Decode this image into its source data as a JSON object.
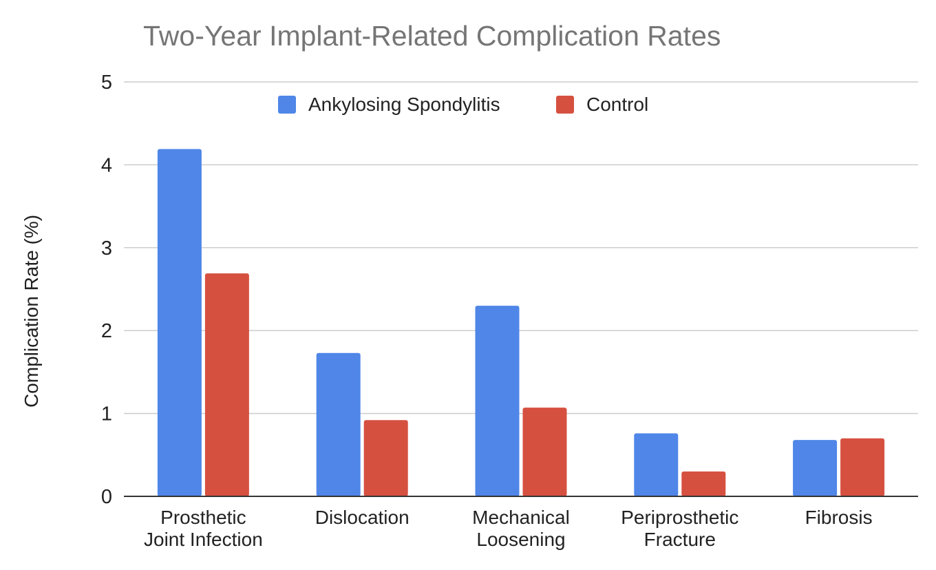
{
  "chart_data": {
    "type": "bar",
    "title": "Two-Year Implant-Related Complication Rates",
    "ylabel": "Complication Rate (%)",
    "xlabel": "",
    "ylim": [
      0,
      5
    ],
    "yticks": [
      0,
      1,
      2,
      3,
      4,
      5
    ],
    "grid": true,
    "legend_position": "top",
    "categories": [
      [
        "Prosthetic",
        "Joint Infection"
      ],
      [
        "Dislocation"
      ],
      [
        "Mechanical",
        "Loosening"
      ],
      [
        "Periprosthetic",
        "Fracture"
      ],
      [
        "Fibrosis"
      ]
    ],
    "series": [
      {
        "name": "Ankylosing Spondylitis",
        "color": "#4f86e8",
        "values": [
          4.19,
          1.73,
          2.3,
          0.76,
          0.68
        ]
      },
      {
        "name": "Control",
        "color": "#d65040",
        "values": [
          2.69,
          0.92,
          1.07,
          0.3,
          0.7
        ]
      }
    ]
  }
}
